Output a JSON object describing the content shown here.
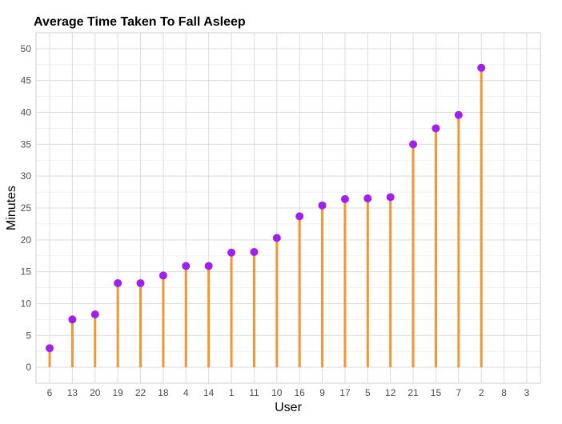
{
  "chart_data": {
    "type": "lollipop",
    "title": "Average Time Taken To Fall Asleep",
    "xlabel": "User",
    "ylabel": "Minutes",
    "ylim": [
      -2.5,
      52.5
    ],
    "yticks": [
      0,
      5,
      10,
      15,
      20,
      25,
      30,
      35,
      40,
      45,
      50
    ],
    "grid": true,
    "colors": {
      "stem": "#f39530",
      "point": "#a020f0"
    },
    "categories": [
      "6",
      "13",
      "20",
      "19",
      "22",
      "18",
      "4",
      "14",
      "1",
      "11",
      "10",
      "16",
      "9",
      "17",
      "5",
      "12",
      "21",
      "15",
      "7",
      "2",
      "8",
      "3"
    ],
    "values": [
      3,
      7.5,
      8.3,
      13.2,
      13.2,
      14.4,
      15.9,
      15.9,
      18,
      18.1,
      20.3,
      23.7,
      25.4,
      26.4,
      26.5,
      26.7,
      35,
      37.5,
      39.6,
      47,
      null,
      null
    ]
  }
}
